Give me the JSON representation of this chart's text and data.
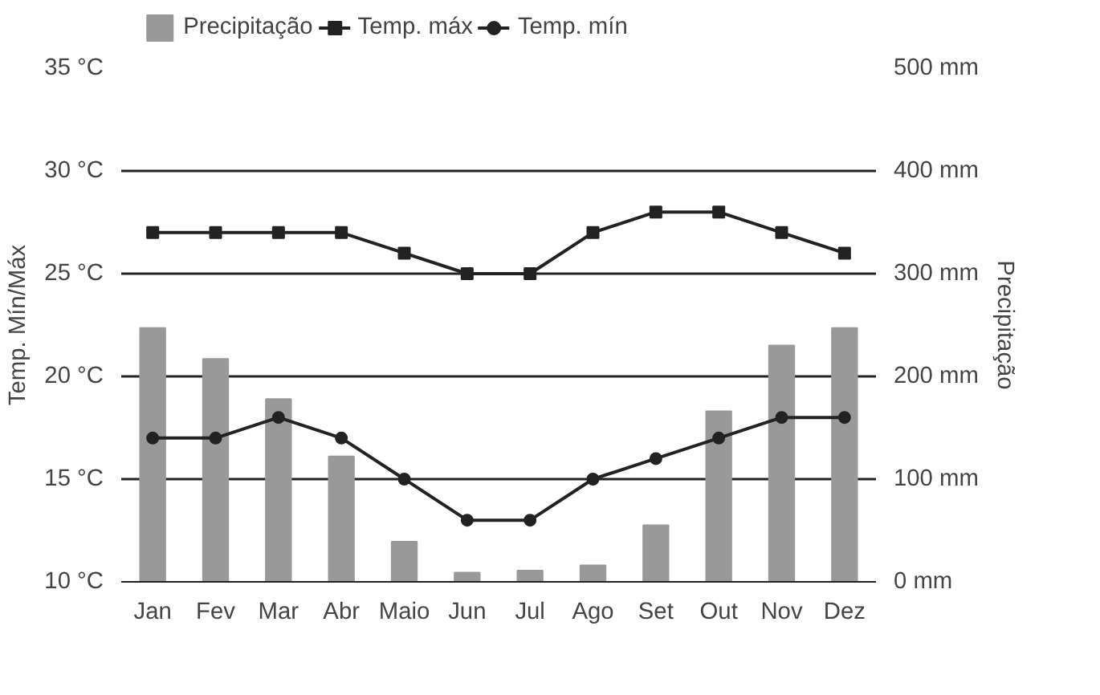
{
  "chart_data": {
    "type": "bar",
    "categories": [
      "Jan",
      "Fev",
      "Mar",
      "Abr",
      "Maio",
      "Jun",
      "Jul",
      "Ago",
      "Set",
      "Out",
      "Nov",
      "Dez"
    ],
    "ylabel": "Temp. Mín/Máx",
    "y2label": "Precipitação",
    "ylim": [
      10,
      35
    ],
    "yticks": [
      {
        "value": 10,
        "label": "10 °C"
      },
      {
        "value": 15,
        "label": "15 °C"
      },
      {
        "value": 20,
        "label": "20 °C"
      },
      {
        "value": 25,
        "label": "25 °C"
      },
      {
        "value": 30,
        "label": "30 °C"
      },
      {
        "value": 35,
        "label": "35 °C"
      }
    ],
    "y2lim": [
      0,
      500
    ],
    "y2ticks": [
      {
        "value": 0,
        "label": "0 mm"
      },
      {
        "value": 100,
        "label": "100 mm"
      },
      {
        "value": 200,
        "label": "200 mm"
      },
      {
        "value": 300,
        "label": "300 mm"
      },
      {
        "value": 400,
        "label": "400 mm"
      },
      {
        "value": 500,
        "label": "500 mm"
      }
    ],
    "grid": "y",
    "legend": "top",
    "series": [
      {
        "name": "Precipitação",
        "axis": "y2",
        "color": "#999999",
        "values": [
          247,
          217,
          178,
          122,
          39,
          9,
          11,
          16,
          55,
          166,
          230,
          247
        ]
      },
      {
        "name": "Temp. máx",
        "type": "line",
        "marker": "square",
        "color": "#222222",
        "values": [
          27,
          27,
          27,
          27,
          26,
          25,
          25,
          27,
          28,
          28,
          27,
          26
        ]
      },
      {
        "name": "Temp. mín",
        "type": "line",
        "marker": "circle",
        "color": "#222222",
        "values": [
          17,
          17,
          18,
          17,
          15,
          13,
          13,
          15,
          16,
          17,
          18,
          18
        ]
      }
    ]
  }
}
